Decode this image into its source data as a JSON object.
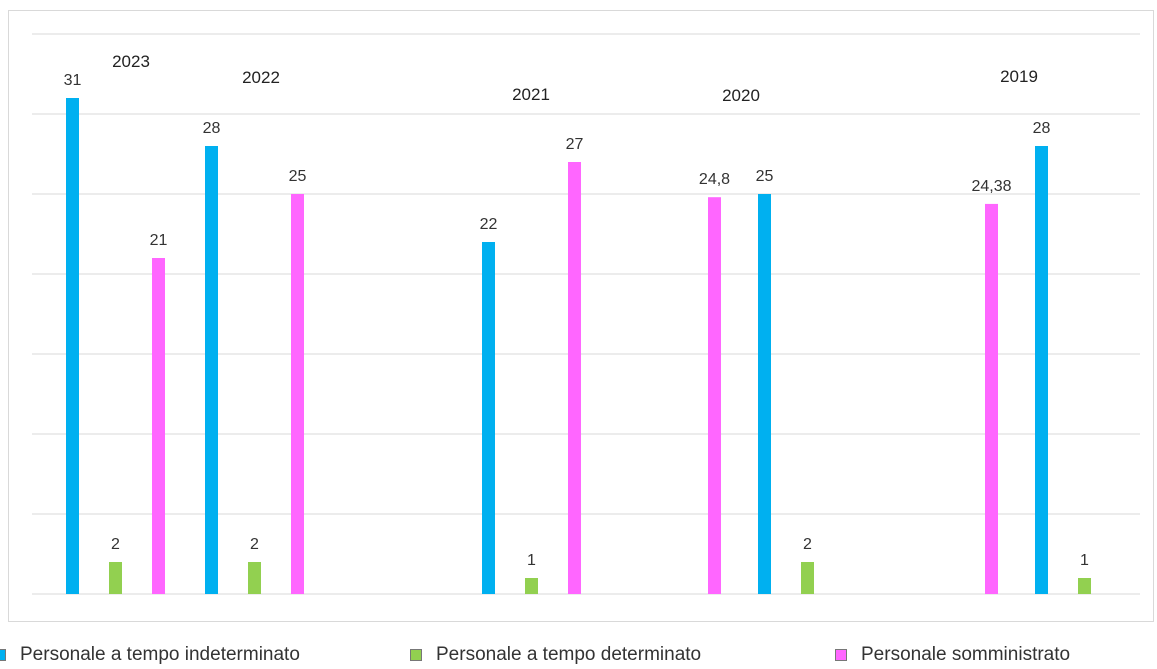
{
  "chart_data": {
    "type": "bar",
    "y_range": [
      0,
      35
    ],
    "y_grid_step": 5,
    "gridlines": true,
    "legend_position": "bottom",
    "series": [
      {
        "name": "Personale a tempo indeterminato",
        "color": "#00b0f0"
      },
      {
        "name": "Personale a tempo determinato",
        "color": "#92d050"
      },
      {
        "name": "Personale somministrato",
        "color": "#ff66ff"
      }
    ],
    "groups": [
      {
        "year": "2023",
        "bars": [
          {
            "series": 0,
            "value": 31,
            "label": "31"
          },
          {
            "series": 1,
            "value": 2,
            "label": "2"
          },
          {
            "series": 2,
            "value": 21,
            "label": "21"
          }
        ]
      },
      {
        "year": "2022",
        "bars": [
          {
            "series": 0,
            "value": 28,
            "label": "28"
          },
          {
            "series": 1,
            "value": 2,
            "label": "2"
          },
          {
            "series": 2,
            "value": 25,
            "label": "25"
          }
        ]
      },
      {
        "year": "2021",
        "bars": [
          {
            "series": 0,
            "value": 22,
            "label": "22"
          },
          {
            "series": 1,
            "value": 1,
            "label": "1"
          },
          {
            "series": 2,
            "value": 27,
            "label": "27"
          }
        ]
      },
      {
        "year": "2020",
        "bars": [
          {
            "series": 2,
            "value": 24.8,
            "label": "24,8"
          },
          {
            "series": 0,
            "value": 25,
            "label": "25"
          },
          {
            "series": 1,
            "value": 2,
            "label": "2"
          }
        ]
      },
      {
        "year": "2019",
        "bars": [
          {
            "series": 2,
            "value": 24.38,
            "label": "24,38"
          },
          {
            "series": 0,
            "value": 28,
            "label": "28"
          },
          {
            "series": 1,
            "value": 1,
            "label": "1"
          }
        ]
      }
    ]
  },
  "legend": {
    "item_0": "Personale a tempo indeterminato",
    "item_1": "Personale a tempo determinato",
    "item_2": "Personale somministrato"
  }
}
